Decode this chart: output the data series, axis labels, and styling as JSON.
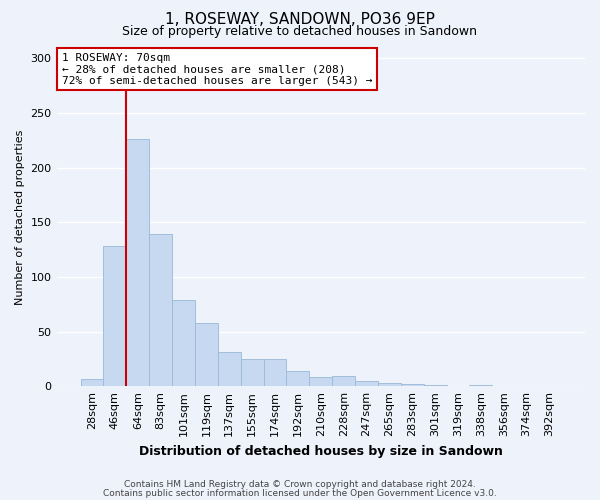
{
  "title": "1, ROSEWAY, SANDOWN, PO36 9EP",
  "subtitle": "Size of property relative to detached houses in Sandown",
  "xlabel": "Distribution of detached houses by size in Sandown",
  "ylabel": "Number of detached properties",
  "bar_labels": [
    "28sqm",
    "46sqm",
    "64sqm",
    "83sqm",
    "101sqm",
    "119sqm",
    "137sqm",
    "155sqm",
    "174sqm",
    "192sqm",
    "210sqm",
    "228sqm",
    "247sqm",
    "265sqm",
    "283sqm",
    "301sqm",
    "319sqm",
    "338sqm",
    "356sqm",
    "374sqm",
    "392sqm"
  ],
  "bar_values": [
    7,
    128,
    226,
    139,
    79,
    58,
    31,
    25,
    25,
    14,
    8,
    9,
    5,
    3,
    2,
    1,
    0,
    1,
    0,
    0,
    0
  ],
  "bar_color": "#c6d9f1",
  "bar_edge_color": "#9ab8d8",
  "ylim": [
    0,
    310
  ],
  "yticks": [
    0,
    50,
    100,
    150,
    200,
    250,
    300
  ],
  "property_line_x": 1.5,
  "property_line_color": "#cc0000",
  "annotation_title": "1 ROSEWAY: 70sqm",
  "annotation_line1": "← 28% of detached houses are smaller (208)",
  "annotation_line2": "72% of semi-detached houses are larger (543) →",
  "annotation_box_color": "#ffffff",
  "annotation_box_edge_color": "#cc0000",
  "footer1": "Contains HM Land Registry data © Crown copyright and database right 2024.",
  "footer2": "Contains public sector information licensed under the Open Government Licence v3.0.",
  "background_color": "#eef2fb",
  "grid_color": "#ffffff",
  "title_fontsize": 11,
  "subtitle_fontsize": 9,
  "ylabel_fontsize": 8,
  "xlabel_fontsize": 9,
  "tick_fontsize": 8,
  "ytick_fontsize": 8,
  "annot_fontsize": 8,
  "footer_fontsize": 6.5
}
